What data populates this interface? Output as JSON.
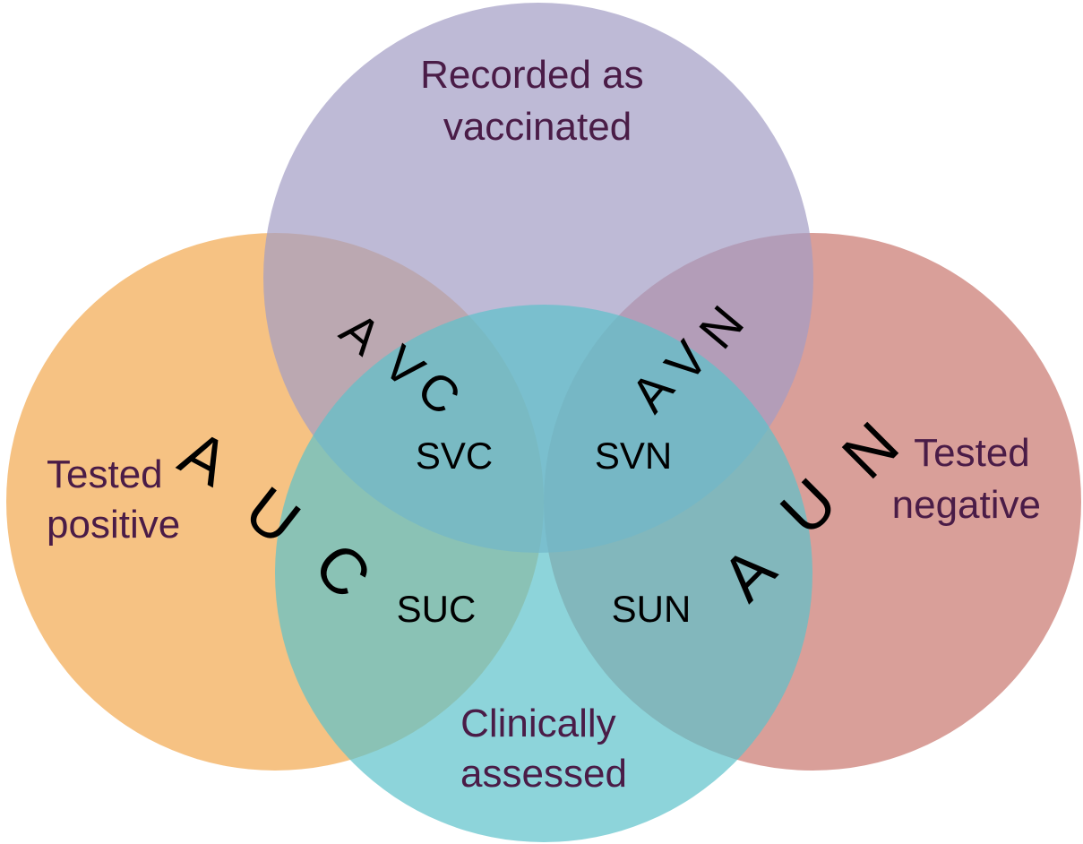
{
  "diagram": {
    "sets": [
      {
        "id": "vaccinated",
        "label_lines": [
          "Recorded as",
          "vaccinated"
        ],
        "color": "#A29DC5"
      },
      {
        "id": "positive",
        "label_lines": [
          "Tested",
          "positive"
        ],
        "color": "#F2A84E"
      },
      {
        "id": "negative",
        "label_lines": [
          "Tested",
          "negative"
        ],
        "color": "#C9766E"
      },
      {
        "id": "clinical",
        "label_lines": [
          "Clinically",
          "assessed"
        ],
        "color": "#5DC2CB"
      }
    ],
    "label_color": "#4A1C47",
    "regions": {
      "svc": "SVC",
      "svn": "SVN",
      "suc": "SUC",
      "sun": "SUN"
    },
    "arc_labels": {
      "avc": "AVC",
      "avn": "AVN",
      "auc": "AUC",
      "aun": "AUN"
    }
  }
}
